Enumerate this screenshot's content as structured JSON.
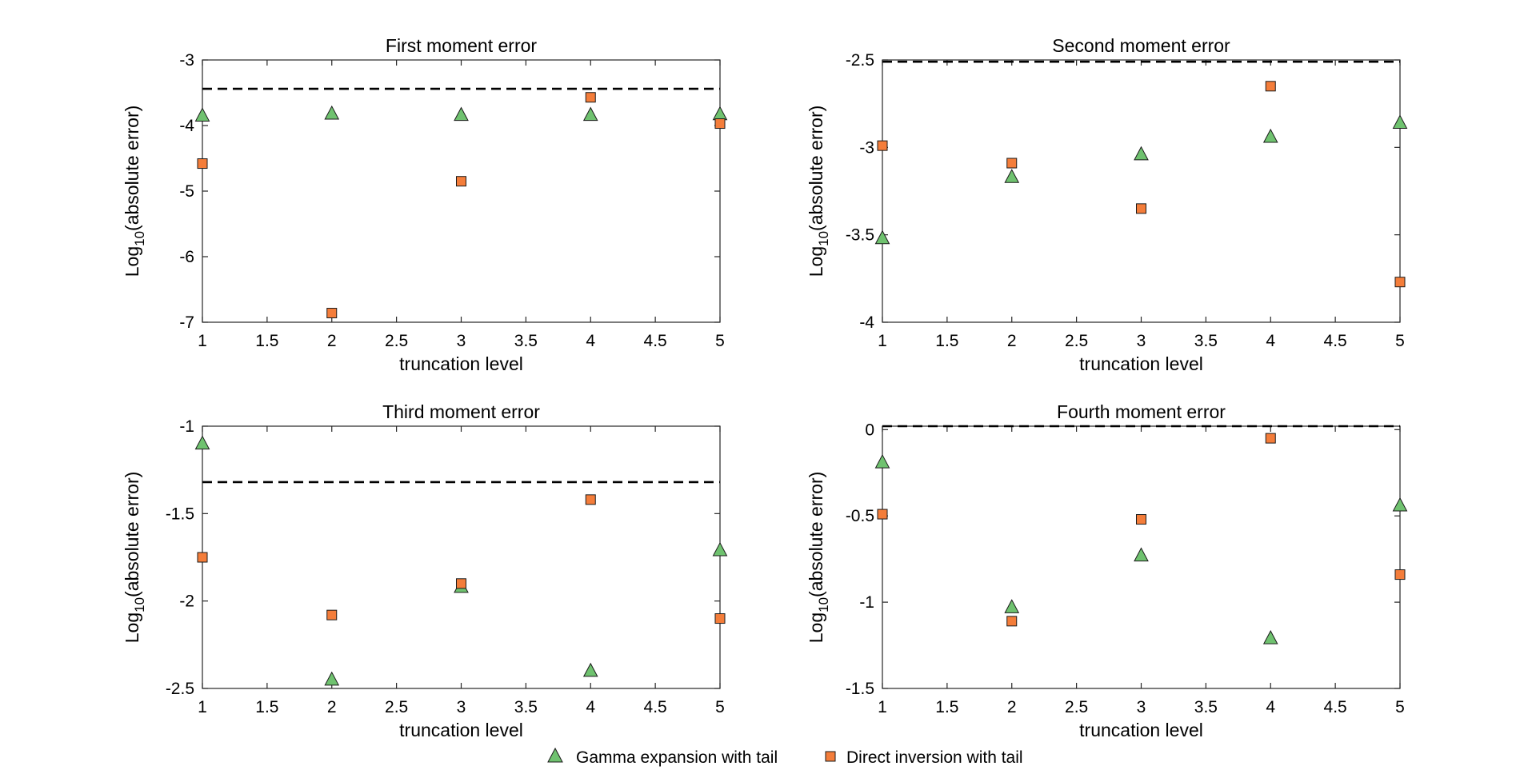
{
  "chart_data": [
    {
      "type": "scatter",
      "title": "First moment error",
      "xlabel": "truncation level",
      "ylabel": "Log",
      "ylabel_sub": "10",
      "ylabel_rest": "(absolute error)",
      "xlim": [
        1,
        5
      ],
      "ylim": [
        -7,
        -3
      ],
      "xticks": [
        "1",
        "1.5",
        "2",
        "2.5",
        "3",
        "3.5",
        "4",
        "4.5",
        "5"
      ],
      "yticks": [
        "-7",
        "-6",
        "-5",
        "-4",
        "-3"
      ],
      "reference_line": -3.44,
      "series": [
        {
          "name": "Gamma expansion with tail",
          "x": [
            1,
            2,
            3,
            4,
            5
          ],
          "values": [
            -3.85,
            -3.82,
            -3.84,
            -3.84,
            -3.83
          ]
        },
        {
          "name": "Direct inversion with tail",
          "x": [
            1,
            2,
            3,
            4,
            5
          ],
          "values": [
            -4.58,
            -6.86,
            -4.85,
            -3.57,
            -3.97
          ]
        }
      ]
    },
    {
      "type": "scatter",
      "title": "Second moment error",
      "xlabel": "truncation level",
      "ylabel": "Log",
      "ylabel_sub": "10",
      "ylabel_rest": "(absolute error)",
      "xlim": [
        1,
        5
      ],
      "ylim": [
        -4,
        -2.5
      ],
      "xticks": [
        "1",
        "1.5",
        "2",
        "2.5",
        "3",
        "3.5",
        "4",
        "4.5",
        "5"
      ],
      "yticks": [
        "-4",
        "-3.5",
        "-3",
        "-2.5"
      ],
      "reference_line": -2.51,
      "series": [
        {
          "name": "Gamma expansion with tail",
          "x": [
            1,
            2,
            3,
            4,
            5
          ],
          "values": [
            -3.52,
            -3.17,
            -3.04,
            -2.94,
            -2.86
          ]
        },
        {
          "name": "Direct inversion with tail",
          "x": [
            1,
            2,
            3,
            4,
            5
          ],
          "values": [
            -2.99,
            -3.09,
            -3.35,
            -2.65,
            -3.77
          ]
        }
      ]
    },
    {
      "type": "scatter",
      "title": "Third moment error",
      "xlabel": "truncation level",
      "ylabel": "Log",
      "ylabel_sub": "10",
      "ylabel_rest": "(absolute error)",
      "xlim": [
        1,
        5
      ],
      "ylim": [
        -2.5,
        -1
      ],
      "xticks": [
        "1",
        "1.5",
        "2",
        "2.5",
        "3",
        "3.5",
        "4",
        "4.5",
        "5"
      ],
      "yticks": [
        "-2.5",
        "-2",
        "-1.5",
        "-1"
      ],
      "reference_line": -1.32,
      "series": [
        {
          "name": "Gamma expansion with tail",
          "x": [
            1,
            2,
            3,
            4,
            5
          ],
          "values": [
            -1.1,
            -2.45,
            -1.92,
            -2.4,
            -1.71
          ]
        },
        {
          "name": "Direct inversion with tail",
          "x": [
            1,
            2,
            3,
            4,
            5
          ],
          "values": [
            -1.75,
            -2.08,
            -1.9,
            -1.42,
            -2.1
          ]
        }
      ]
    },
    {
      "type": "scatter",
      "title": "Fourth moment error",
      "xlabel": "truncation level",
      "ylabel": "Log",
      "ylabel_sub": "10",
      "ylabel_rest": "(absolute error)",
      "xlim": [
        1,
        5
      ],
      "ylim": [
        -1.5,
        0.02
      ],
      "xticks": [
        "1",
        "1.5",
        "2",
        "2.5",
        "3",
        "3.5",
        "4",
        "4.5",
        "5"
      ],
      "yticks": [
        "-1.5",
        "-1",
        "-0.5",
        "0"
      ],
      "reference_line": 0.02,
      "series": [
        {
          "name": "Gamma expansion with tail",
          "x": [
            1,
            2,
            3,
            4,
            5
          ],
          "values": [
            -0.19,
            -1.03,
            -0.73,
            -1.21,
            -0.44
          ]
        },
        {
          "name": "Direct inversion with tail",
          "x": [
            1,
            2,
            3,
            4,
            5
          ],
          "values": [
            -0.49,
            -1.11,
            -0.52,
            -0.05,
            -0.84
          ]
        }
      ]
    }
  ],
  "legend": {
    "items": [
      {
        "label": "Gamma expansion with tail",
        "marker": "triangle"
      },
      {
        "label": "Direct inversion with tail",
        "marker": "square"
      }
    ]
  },
  "colors": {
    "gamma": "#6fc26f",
    "direct": "#f47d3a",
    "reference": "#000000",
    "axes": "#262626"
  }
}
